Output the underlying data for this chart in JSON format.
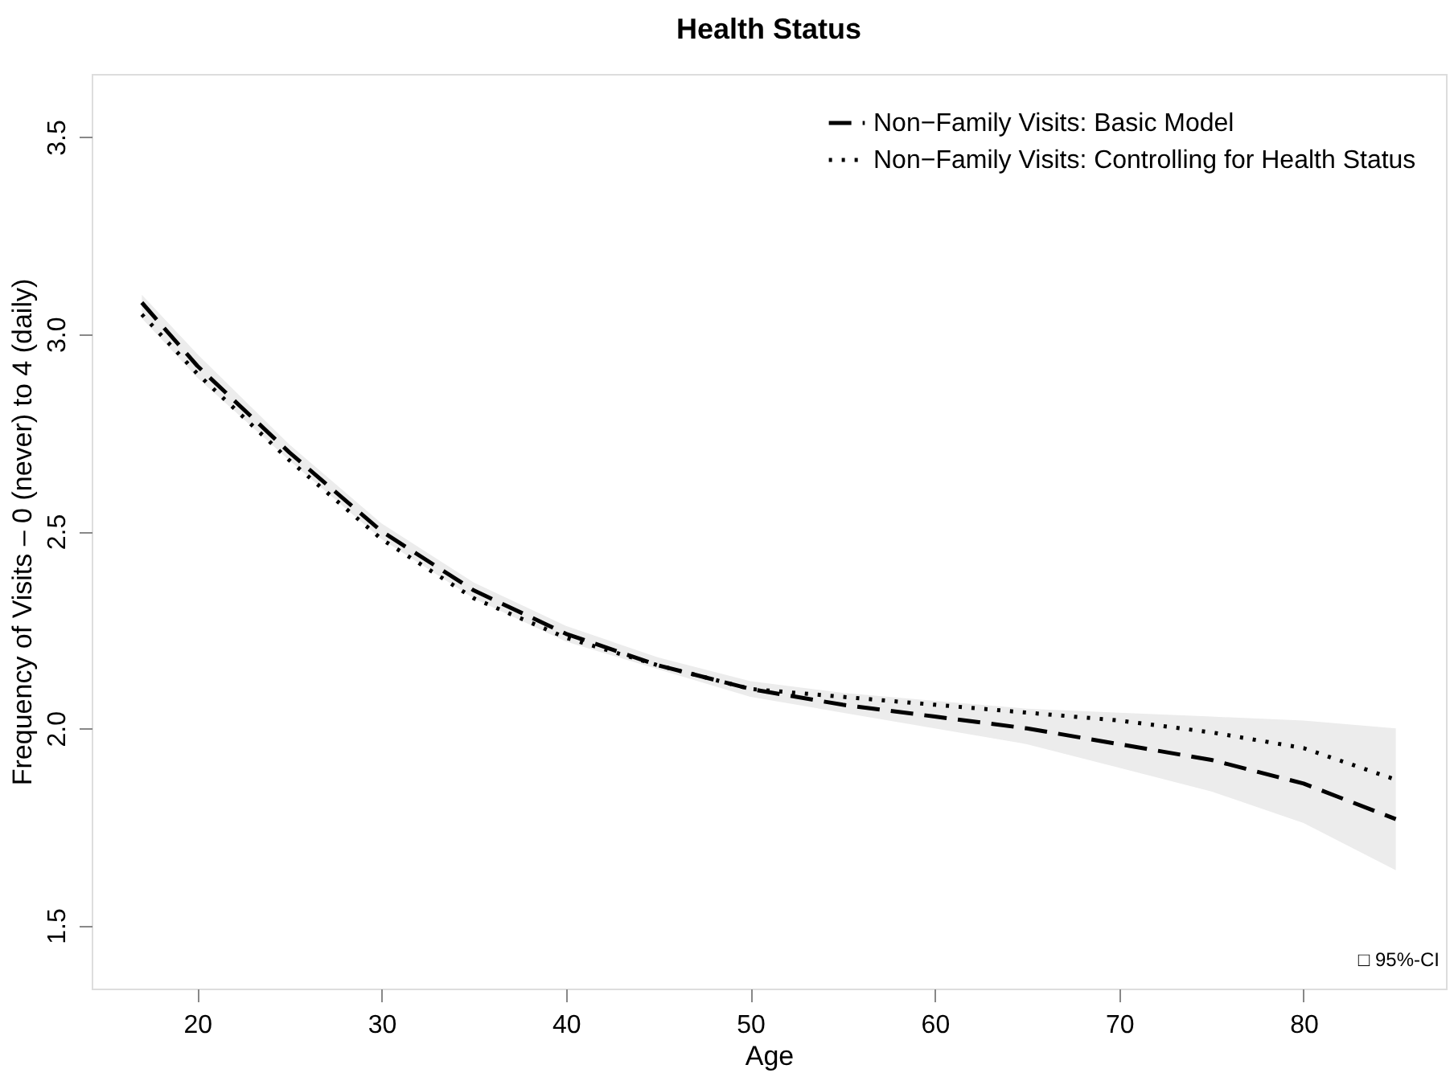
{
  "chart_data": {
    "type": "line",
    "title": "Health Status",
    "xlabel": "Age",
    "ylabel": "Frequency of Visits – 0 (never) to 4 (daily)",
    "x": [
      17,
      20,
      25,
      30,
      35,
      40,
      45,
      50,
      55,
      60,
      65,
      70,
      75,
      80,
      85
    ],
    "series": [
      {
        "name": "Non−Family Visits: Basic Model",
        "color": "#000000",
        "line_style": "dashed",
        "values": [
          3.08,
          2.92,
          2.7,
          2.5,
          2.35,
          2.24,
          2.16,
          2.1,
          2.06,
          2.03,
          2.0,
          1.96,
          1.92,
          1.86,
          1.77
        ],
        "lower": [
          3.04,
          2.89,
          2.68,
          2.48,
          2.33,
          2.22,
          2.15,
          2.08,
          2.04,
          2.0,
          1.96,
          1.9,
          1.84,
          1.76,
          1.64
        ],
        "upper": [
          3.1,
          2.95,
          2.72,
          2.52,
          2.37,
          2.26,
          2.18,
          2.12,
          2.09,
          2.07,
          2.05,
          2.04,
          2.03,
          2.02,
          2.0
        ]
      },
      {
        "name": "Non−Family Visits: Controlling for Health Status",
        "color": "#000000",
        "line_style": "dotted",
        "values": [
          3.05,
          2.9,
          2.68,
          2.48,
          2.33,
          2.23,
          2.16,
          2.1,
          2.08,
          2.06,
          2.04,
          2.02,
          1.99,
          1.95,
          1.87
        ]
      }
    ],
    "annotations": [
      "□ 95%-CI"
    ],
    "xlim": [
      14.28,
      87.72
    ],
    "xticks": [
      20,
      30,
      40,
      50,
      60,
      70,
      80
    ],
    "ylim": [
      1.34,
      3.66
    ],
    "yticks": [
      1.5,
      {
        "value": 2,
        "label": "2.0"
      },
      2.5,
      {
        "value": 3,
        "label": "3.0"
      },
      3.5
    ],
    "grid": false,
    "legend": "top right",
    "marker": "none"
  }
}
